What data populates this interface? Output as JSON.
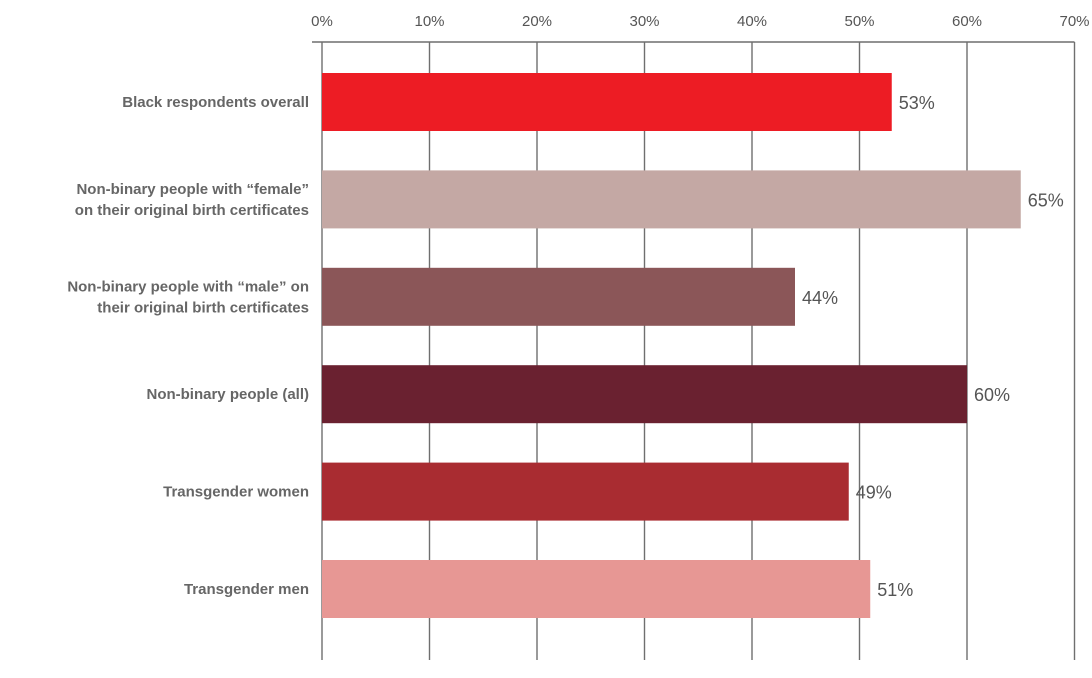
{
  "chart_data": {
    "type": "bar",
    "orientation": "horizontal",
    "title": "",
    "xlabel": "",
    "ylabel": "",
    "xlim": [
      0,
      70
    ],
    "x_ticks": [
      0,
      10,
      20,
      30,
      40,
      50,
      60,
      70
    ],
    "x_tick_labels": [
      "0%",
      "10%",
      "20%",
      "30%",
      "40%",
      "50%",
      "60%",
      "70%"
    ],
    "x_axis_position": "top",
    "grid": true,
    "legend": "none",
    "categories": [
      [
        "Black respondents overall"
      ],
      [
        "Non-binary people with “female”",
        "on their original birth certificates"
      ],
      [
        "Non-binary people with “male” on",
        "their original birth certificates"
      ],
      [
        "Non-binary people (all)"
      ],
      [
        "Transgender women"
      ],
      [
        "Transgender men"
      ]
    ],
    "values": [
      53,
      65,
      44,
      60,
      49,
      51
    ],
    "value_labels": [
      "53%",
      "65%",
      "44%",
      "60%",
      "49%",
      "51%"
    ],
    "colors": [
      "#ed1c24",
      "#c4a8a4",
      "#8b5658",
      "#6a2130",
      "#a92c31",
      "#e79794"
    ]
  }
}
